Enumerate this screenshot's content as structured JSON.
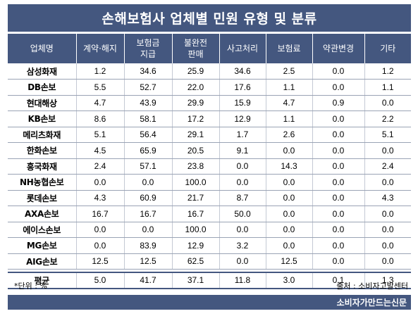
{
  "title": "손해보험사 업체별 민원 유형 및 분류",
  "headers": [
    [
      "업체명"
    ],
    [
      "계약·해지"
    ],
    [
      "보험금",
      "지급"
    ],
    [
      "불완전",
      "판매"
    ],
    [
      "사고처리"
    ],
    [
      "보험료"
    ],
    [
      "약관변경"
    ],
    [
      "기타"
    ]
  ],
  "rows": [
    [
      "삼성화재",
      "1.2",
      "34.6",
      "25.9",
      "34.6",
      "2.5",
      "0.0",
      "1.2"
    ],
    [
      "DB손보",
      "5.5",
      "52.7",
      "22.0",
      "17.6",
      "1.1",
      "0.0",
      "1.1"
    ],
    [
      "현대해상",
      "4.7",
      "43.9",
      "29.9",
      "15.9",
      "4.7",
      "0.9",
      "0.0"
    ],
    [
      "KB손보",
      "8.6",
      "58.1",
      "17.2",
      "12.9",
      "1.1",
      "0.0",
      "2.2"
    ],
    [
      "메리츠화재",
      "5.1",
      "56.4",
      "29.1",
      "1.7",
      "2.6",
      "0.0",
      "5.1"
    ],
    [
      "한화손보",
      "4.5",
      "65.9",
      "20.5",
      "9.1",
      "0.0",
      "0.0",
      "0.0"
    ],
    [
      "흥국화재",
      "2.4",
      "57.1",
      "23.8",
      "0.0",
      "14.3",
      "0.0",
      "2.4"
    ],
    [
      "NH농협손보",
      "0.0",
      "0.0",
      "100.0",
      "0.0",
      "0.0",
      "0.0",
      "0.0"
    ],
    [
      "롯데손보",
      "4.3",
      "60.9",
      "21.7",
      "8.7",
      "0.0",
      "0.0",
      "4.3"
    ],
    [
      "AXA손보",
      "16.7",
      "16.7",
      "16.7",
      "50.0",
      "0.0",
      "0.0",
      "0.0"
    ],
    [
      "에이스손보",
      "0.0",
      "0.0",
      "100.0",
      "0.0",
      "0.0",
      "0.0",
      "0.0"
    ],
    [
      "MG손보",
      "0.0",
      "83.9",
      "12.9",
      "3.2",
      "0.0",
      "0.0",
      "0.0"
    ],
    [
      "AIG손보",
      "12.5",
      "12.5",
      "62.5",
      "0.0",
      "12.5",
      "0.0",
      "0.0"
    ]
  ],
  "average": [
    "평균",
    "5.0",
    "41.7",
    "37.1",
    "11.8",
    "3.0",
    "0.1",
    "1.3"
  ],
  "unit_note": "*단위 : %",
  "source_note": "출처 : 소비자고발센터",
  "footer": "소비자가만드는신문",
  "colors": {
    "header_bg": "#44577f",
    "header_text": "#ffffff"
  }
}
